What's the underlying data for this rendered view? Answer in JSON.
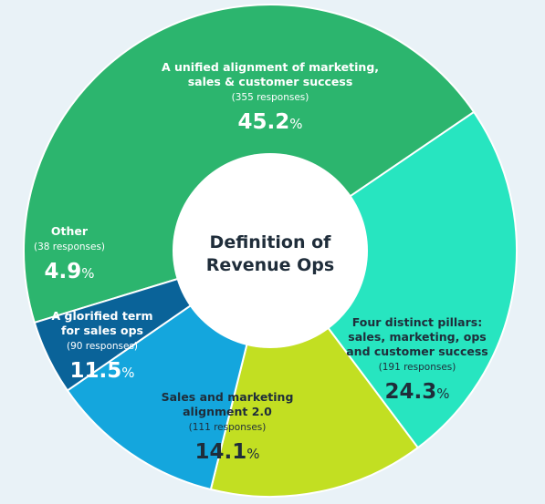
{
  "chart_data": {
    "type": "pie",
    "title": "Definition of Revenue Ops",
    "title_lines": [
      "Definition of",
      "Revenue Ops"
    ],
    "donut": true,
    "start_angle_deg": 253,
    "slices": [
      {
        "label_lines": [
          "A unified alignment of marketing,",
          "sales & customer success"
        ],
        "responses": "(355 responses)",
        "percent": 45.2,
        "percent_text": "45.2",
        "color": "#2cb56e",
        "text_color": "#ffffff"
      },
      {
        "label_lines": [
          "Four distinct pillars:",
          "sales, marketing, ops",
          "and customer success"
        ],
        "responses": "(191 responses)",
        "percent": 24.3,
        "percent_text": "24.3",
        "color": "#27e5c0",
        "text_color": "#1f2d3a"
      },
      {
        "label_lines": [
          "Sales and marketing",
          "alignment 2.0"
        ],
        "responses": "(111 responses)",
        "percent": 14.1,
        "percent_text": "14.1",
        "color": "#c2df22",
        "text_color": "#1f2d3a"
      },
      {
        "label_lines": [
          "A glorified term",
          "for sales ops"
        ],
        "responses": "(90 responses)",
        "percent": 11.5,
        "percent_text": "11.5",
        "color": "#14a6dd",
        "text_color": "#ffffff"
      },
      {
        "label_lines": [
          "Other"
        ],
        "responses": "(38 responses)",
        "percent": 4.9,
        "percent_text": "4.9",
        "color": "#0a6399",
        "text_color": "#ffffff"
      }
    ],
    "percent_suffix": "%"
  }
}
